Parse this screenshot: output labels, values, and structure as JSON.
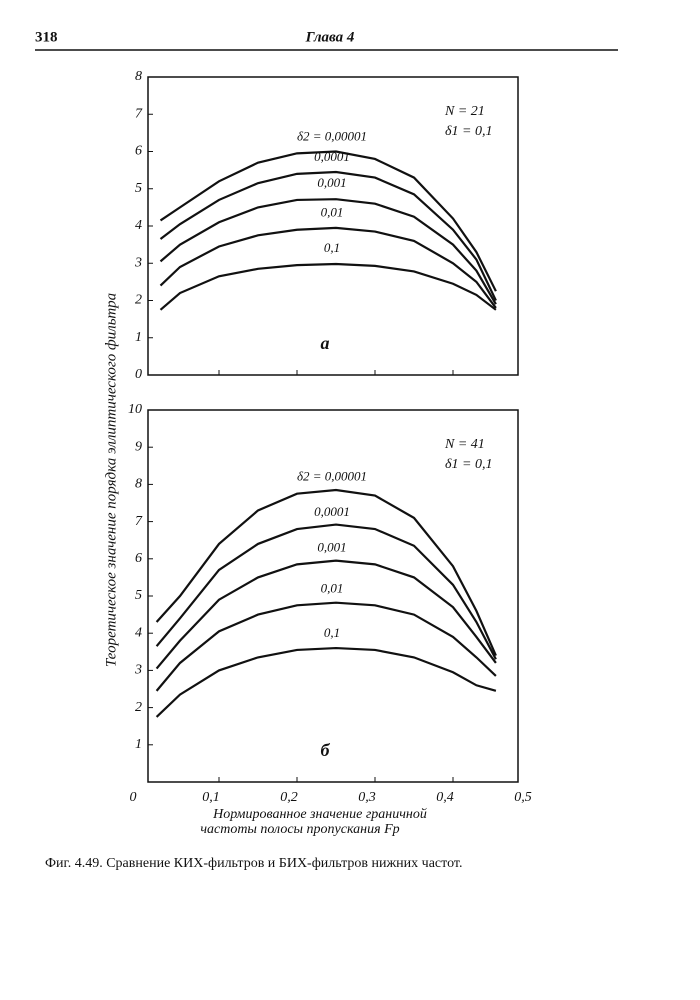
{
  "header": {
    "page_number": "318",
    "chapter": "Глава 4"
  },
  "figure": {
    "y_label": "Теоретическое значение порядка эллиптического фильтра",
    "x_label": [
      "Нормированное значение граничной",
      "частоты полосы пропускания Fp"
    ],
    "caption": "Фиг. 4.49. Сравнение КИХ-фильтров и БИХ-фильтров нижних частот."
  },
  "chart_data": [
    {
      "type": "line",
      "panel": "а",
      "annotations": [
        "N = 21",
        "δ1 = 0,1"
      ],
      "xlim": [
        0,
        0.5
      ],
      "ylim": [
        0,
        8
      ],
      "yticks": [
        0,
        1,
        2,
        3,
        4,
        5,
        6,
        7,
        8
      ],
      "x": [
        0.025,
        0.05,
        0.1,
        0.15,
        0.2,
        0.25,
        0.3,
        0.35,
        0.4,
        0.43,
        0.455
      ],
      "series": [
        {
          "name": "δ2 = 0,00001",
          "color": "#111",
          "values": [
            4.15,
            4.5,
            5.2,
            5.7,
            5.95,
            6.0,
            5.8,
            5.3,
            4.2,
            3.3,
            2.25
          ]
        },
        {
          "name": "0,0001",
          "color": "#111",
          "values": [
            3.65,
            4.05,
            4.7,
            5.15,
            5.4,
            5.45,
            5.3,
            4.85,
            3.9,
            3.1,
            2.0
          ]
        },
        {
          "name": "0,001",
          "color": "#111",
          "values": [
            3.05,
            3.5,
            4.1,
            4.5,
            4.7,
            4.72,
            4.6,
            4.25,
            3.5,
            2.8,
            1.9
          ]
        },
        {
          "name": "0,01",
          "color": "#111",
          "values": [
            2.4,
            2.9,
            3.45,
            3.75,
            3.9,
            3.95,
            3.85,
            3.6,
            3.0,
            2.5,
            1.8
          ]
        },
        {
          "name": "0,1",
          "color": "#111",
          "values": [
            1.75,
            2.2,
            2.65,
            2.85,
            2.95,
            2.98,
            2.93,
            2.78,
            2.45,
            2.15,
            1.75
          ]
        }
      ]
    },
    {
      "type": "line",
      "panel": "б",
      "annotations": [
        "N = 41",
        "δ1 = 0,1"
      ],
      "xlim": [
        0,
        0.5
      ],
      "ylim": [
        0,
        10
      ],
      "yticks": [
        1,
        2,
        3,
        4,
        5,
        6,
        7,
        8,
        9,
        10
      ],
      "xticks": [
        {
          "value": 0,
          "label": "0"
        },
        {
          "value": 0.1,
          "label": "0,1"
        },
        {
          "value": 0.2,
          "label": "0,2"
        },
        {
          "value": 0.3,
          "label": "0,3"
        },
        {
          "value": 0.4,
          "label": "0,4"
        },
        {
          "value": 0.5,
          "label": "0,5"
        }
      ],
      "x": [
        0.02,
        0.05,
        0.1,
        0.15,
        0.2,
        0.25,
        0.3,
        0.35,
        0.4,
        0.43,
        0.455
      ],
      "series": [
        {
          "name": "δ2 = 0,00001",
          "color": "#111",
          "values": [
            4.3,
            5.0,
            6.4,
            7.3,
            7.75,
            7.85,
            7.7,
            7.1,
            5.8,
            4.6,
            3.4
          ]
        },
        {
          "name": "0,0001",
          "color": "#111",
          "values": [
            3.65,
            4.4,
            5.7,
            6.4,
            6.8,
            6.92,
            6.8,
            6.35,
            5.3,
            4.3,
            3.3
          ]
        },
        {
          "name": "0,001",
          "color": "#111",
          "values": [
            3.05,
            3.8,
            4.9,
            5.5,
            5.85,
            5.95,
            5.85,
            5.5,
            4.7,
            3.9,
            3.2
          ]
        },
        {
          "name": "0,01",
          "color": "#111",
          "values": [
            2.45,
            3.2,
            4.05,
            4.5,
            4.75,
            4.82,
            4.75,
            4.5,
            3.9,
            3.35,
            2.85
          ]
        },
        {
          "name": "0,1",
          "color": "#111",
          "values": [
            1.75,
            2.35,
            3.0,
            3.35,
            3.55,
            3.6,
            3.55,
            3.35,
            2.95,
            2.6,
            2.45
          ]
        }
      ]
    }
  ]
}
